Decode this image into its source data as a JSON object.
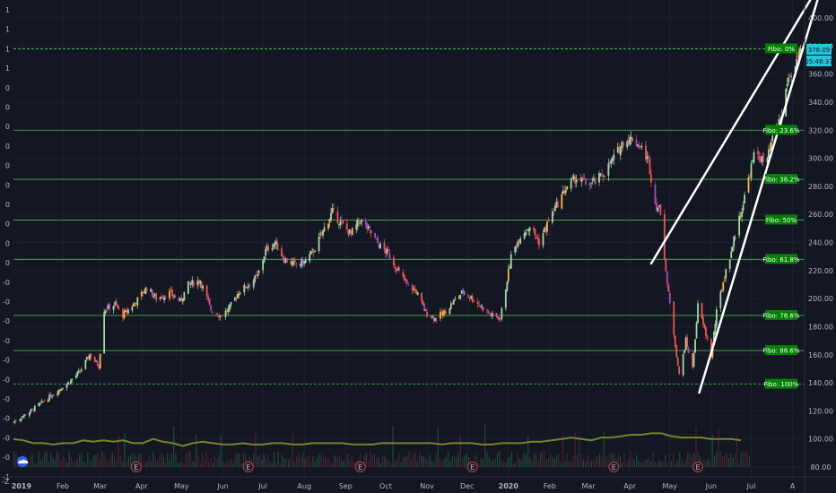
{
  "chart_data": {
    "type": "candlestick",
    "title": "",
    "xlabel": "",
    "ylabel": "",
    "ylim": [
      78,
      412
    ],
    "y_ticks": [
      400,
      380,
      360,
      340,
      320,
      300,
      280,
      260,
      240,
      220,
      200,
      180,
      160,
      140,
      120,
      100,
      80
    ],
    "x_ticks": [
      "2019",
      "Feb",
      "Mar",
      "Apr",
      "May",
      "Jun",
      "Jul",
      "Aug",
      "Sep",
      "Oct",
      "Nov",
      "Dec",
      "2020",
      "Feb",
      "Mar",
      "Apr",
      "May",
      "Jun",
      "Jul",
      "A"
    ],
    "x_range": [
      "2018-12-26",
      "2020-08-10"
    ],
    "x_tick_dates": [
      "2019-01-01",
      "2019-02-01",
      "2019-03-01",
      "2019-04-01",
      "2019-05-01",
      "2019-06-01",
      "2019-07-01",
      "2019-08-01",
      "2019-09-01",
      "2019-10-01",
      "2019-11-01",
      "2019-12-01",
      "2020-01-01",
      "2020-02-01",
      "2020-03-01",
      "2020-04-01",
      "2020-05-01",
      "2020-06-01",
      "2020-07-01",
      "2020-08-01"
    ],
    "close_path": [
      [
        "2018-12-26",
        112
      ],
      [
        "2019-01-08",
        120
      ],
      [
        "2019-01-22",
        130
      ],
      [
        "2019-02-05",
        140
      ],
      [
        "2019-02-14",
        148
      ],
      [
        "2019-02-21",
        160
      ],
      [
        "2019-02-28",
        152
      ],
      [
        "2019-03-04",
        192
      ],
      [
        "2019-03-12",
        196
      ],
      [
        "2019-03-18",
        188
      ],
      [
        "2019-03-28",
        198
      ],
      [
        "2019-04-05",
        208
      ],
      [
        "2019-04-12",
        200
      ],
      [
        "2019-04-22",
        204
      ],
      [
        "2019-04-30",
        198
      ],
      [
        "2019-05-06",
        210
      ],
      [
        "2019-05-15",
        213
      ],
      [
        "2019-05-23",
        192
      ],
      [
        "2019-05-30",
        188
      ],
      [
        "2019-06-05",
        192
      ],
      [
        "2019-06-13",
        205
      ],
      [
        "2019-06-20",
        210
      ],
      [
        "2019-06-27",
        216
      ],
      [
        "2019-07-03",
        234
      ],
      [
        "2019-07-10",
        240
      ],
      [
        "2019-07-17",
        228
      ],
      [
        "2019-07-25",
        224
      ],
      [
        "2019-08-01",
        226
      ],
      [
        "2019-08-08",
        234
      ],
      [
        "2019-08-15",
        248
      ],
      [
        "2019-08-22",
        262
      ],
      [
        "2019-08-28",
        254
      ],
      [
        "2019-09-05",
        246
      ],
      [
        "2019-09-12",
        256
      ],
      [
        "2019-09-19",
        248
      ],
      [
        "2019-09-26",
        238
      ],
      [
        "2019-10-03",
        232
      ],
      [
        "2019-10-10",
        220
      ],
      [
        "2019-10-17",
        210
      ],
      [
        "2019-10-24",
        205
      ],
      [
        "2019-10-31",
        190
      ],
      [
        "2019-11-07",
        186
      ],
      [
        "2019-11-14",
        190
      ],
      [
        "2019-11-21",
        198
      ],
      [
        "2019-11-28",
        205
      ],
      [
        "2019-12-05",
        200
      ],
      [
        "2019-12-12",
        194
      ],
      [
        "2019-12-19",
        188
      ],
      [
        "2019-12-26",
        186
      ],
      [
        "2020-01-03",
        230
      ],
      [
        "2020-01-10",
        245
      ],
      [
        "2020-01-17",
        252
      ],
      [
        "2020-01-24",
        240
      ],
      [
        "2020-01-31",
        255
      ],
      [
        "2020-02-07",
        268
      ],
      [
        "2020-02-14",
        280
      ],
      [
        "2020-02-21",
        286
      ],
      [
        "2020-02-28",
        282
      ],
      [
        "2020-03-06",
        283
      ],
      [
        "2020-03-13",
        290
      ],
      [
        "2020-03-20",
        300
      ],
      [
        "2020-03-27",
        312
      ],
      [
        "2020-04-03",
        314
      ],
      [
        "2020-04-09",
        308
      ],
      [
        "2020-04-15",
        298
      ],
      [
        "2020-04-20",
        268
      ],
      [
        "2020-04-24",
        262
      ],
      [
        "2020-04-29",
        210
      ],
      [
        "2020-05-04",
        175
      ],
      [
        "2020-05-08",
        145
      ],
      [
        "2020-05-13",
        170
      ],
      [
        "2020-05-18",
        150
      ],
      [
        "2020-05-22",
        195
      ],
      [
        "2020-05-27",
        178
      ],
      [
        "2020-06-01",
        160
      ],
      [
        "2020-06-05",
        190
      ],
      [
        "2020-06-10",
        212
      ],
      [
        "2020-06-15",
        230
      ],
      [
        "2020-06-20",
        250
      ],
      [
        "2020-06-25",
        268
      ],
      [
        "2020-06-30",
        290
      ],
      [
        "2020-07-04",
        305
      ],
      [
        "2020-07-08",
        300
      ],
      [
        "2020-07-12",
        295
      ],
      [
        "2020-07-16",
        310
      ],
      [
        "2020-07-20",
        322
      ],
      [
        "2020-07-24",
        330
      ],
      [
        "2020-07-28",
        355
      ],
      [
        "2020-08-01",
        362
      ],
      [
        "2020-08-05",
        372
      ],
      [
        "2020-08-08",
        375
      ]
    ],
    "volume_ma": [
      100,
      99,
      97,
      97,
      96,
      97,
      97,
      99,
      98,
      99,
      98,
      99,
      97,
      97,
      100,
      98,
      97,
      95,
      97,
      98,
      97,
      96,
      96,
      97,
      96,
      96,
      97,
      97,
      96,
      96,
      97,
      97,
      97,
      97,
      96,
      96,
      96,
      97,
      97,
      97,
      97,
      97,
      97,
      96,
      97,
      97,
      97,
      96,
      96,
      97,
      97,
      97,
      98,
      98,
      99,
      100,
      101,
      100,
      99,
      101,
      101,
      102,
      103,
      103,
      104,
      104,
      102,
      101,
      101,
      101,
      100,
      100,
      100,
      99
    ],
    "earnings_markers": [
      "2019-03-28",
      "2019-06-20",
      "2019-09-12",
      "2019-12-05",
      "2020-03-20",
      "2020-05-22"
    ],
    "fibonacci": [
      {
        "label": "Fibo:  0%",
        "value": 378
      },
      {
        "label": "Fibo: 23.6%",
        "value": 320
      },
      {
        "label": "Fibo: 38.2%",
        "value": 285
      },
      {
        "label": "Fibo:  50%",
        "value": 256
      },
      {
        "label": "Fibo: 61.8%",
        "value": 228
      },
      {
        "label": "Fibo: 78.6%",
        "value": 188
      },
      {
        "label": "Fibo: 88.6%",
        "value": 163
      },
      {
        "label": "Fibo:  100%",
        "value": 139
      }
    ],
    "trend_lines": [
      [
        [
          "2020-04-17",
          225
        ],
        [
          "2020-08-22",
          425
        ]
      ],
      [
        [
          "2020-05-23",
          133
        ],
        [
          "2020-08-22",
          420
        ]
      ]
    ],
    "last_price": "378.09",
    "countdown": "05:46:37",
    "left_axis_labels": [
      "1",
      "1",
      "1",
      "1",
      "0",
      "0",
      "0",
      "0",
      "0",
      "0",
      "0",
      "0",
      "0",
      "0",
      "-0",
      "-0",
      "-0",
      "-0",
      "-0",
      "-0",
      "-0",
      "-0",
      "-0",
      "-0",
      "-1",
      "-1"
    ],
    "left_bottom_label": "-Z",
    "colors": {
      "background": "#131722",
      "fibo_line": "#4caf50",
      "fibo_label_bg": "#008000",
      "price_tag": "#26c6da",
      "volume_ma": "#7a8228",
      "trend_line": "#ffffff",
      "candle_up": "#a5d6a7",
      "candle_down": "#ef5350",
      "candle_alt": "#ab47bc",
      "candle_warm": "#ffb74d"
    }
  }
}
